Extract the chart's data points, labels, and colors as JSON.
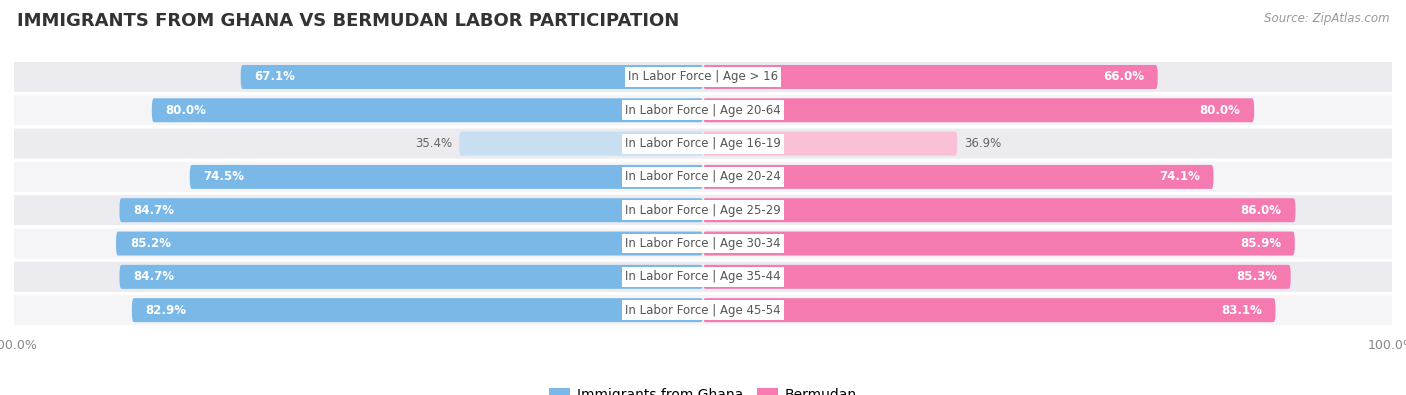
{
  "title": "IMMIGRANTS FROM GHANA VS BERMUDAN LABOR PARTICIPATION",
  "source": "Source: ZipAtlas.com",
  "categories": [
    "In Labor Force | Age > 16",
    "In Labor Force | Age 20-64",
    "In Labor Force | Age 16-19",
    "In Labor Force | Age 20-24",
    "In Labor Force | Age 25-29",
    "In Labor Force | Age 30-34",
    "In Labor Force | Age 35-44",
    "In Labor Force | Age 45-54"
  ],
  "ghana_values": [
    67.1,
    80.0,
    35.4,
    74.5,
    84.7,
    85.2,
    84.7,
    82.9
  ],
  "bermudan_values": [
    66.0,
    80.0,
    36.9,
    74.1,
    86.0,
    85.9,
    85.3,
    83.1
  ],
  "ghana_color": "#7ab8e8",
  "ghana_color_light": "#c8dff2",
  "bermudan_color": "#f47ab0",
  "bermudan_color_light": "#f9c0d8",
  "row_bg_even": "#ebebf0",
  "row_bg_odd": "#f5f5f8",
  "max_value": 100.0,
  "title_fontsize": 13,
  "label_fontsize": 8.5,
  "value_fontsize": 8.5,
  "legend_fontsize": 10
}
